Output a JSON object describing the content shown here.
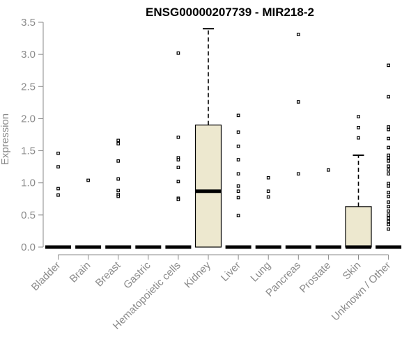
{
  "chart_data": {
    "type": "box",
    "title": "ENSG00000207739 - MIR218-2",
    "xlabel": "",
    "ylabel": "Expression",
    "ylim": [
      0,
      3.5
    ],
    "yticks": [
      0.0,
      0.5,
      1.0,
      1.5,
      2.0,
      2.5,
      3.0,
      3.5
    ],
    "ytick_labels": [
      "0.0",
      "0.5",
      "1.0",
      "1.5",
      "2.0",
      "2.5",
      "3.0",
      "3.5"
    ],
    "grid": false,
    "box_fill": "#ede8cf",
    "categories": [
      "Bladder",
      "Brain",
      "Breast",
      "Gastric",
      "Hematopoietic cells",
      "Kidney",
      "Liver",
      "Lung",
      "Pancreas",
      "Prostate",
      "Skin",
      "Unknown / Other"
    ],
    "boxes": [
      {
        "category": "Bladder",
        "q1": 0,
        "median": 0,
        "q3": 0,
        "whisker_low": 0,
        "whisker_high": 0,
        "outliers": [
          1.46,
          1.25,
          0.91,
          0.81
        ]
      },
      {
        "category": "Brain",
        "q1": 0,
        "median": 0,
        "q3": 0,
        "whisker_low": 0,
        "whisker_high": 0,
        "outliers": [
          1.04
        ]
      },
      {
        "category": "Breast",
        "q1": 0,
        "median": 0,
        "q3": 0,
        "whisker_low": 0,
        "whisker_high": 0,
        "outliers": [
          1.66,
          1.61,
          1.34,
          1.06,
          0.88,
          0.82,
          0.79
        ]
      },
      {
        "category": "Gastric",
        "q1": 0,
        "median": 0,
        "q3": 0,
        "whisker_low": 0,
        "whisker_high": 0,
        "outliers": []
      },
      {
        "category": "Hematopoietic cells",
        "q1": 0,
        "median": 0,
        "q3": 0,
        "whisker_low": 0,
        "whisker_high": 0,
        "outliers": [
          3.02,
          1.71,
          1.39,
          1.36,
          1.24,
          1.02,
          0.76,
          0.74
        ]
      },
      {
        "category": "Kidney",
        "q1": 0,
        "median": 0.87,
        "q3": 1.9,
        "whisker_low": 0,
        "whisker_high": 3.4,
        "outliers": []
      },
      {
        "category": "Liver",
        "q1": 0,
        "median": 0,
        "q3": 0,
        "whisker_low": 0,
        "whisker_high": 0,
        "outliers": [
          2.05,
          1.79,
          1.57,
          1.36,
          1.14,
          0.95,
          0.87,
          0.77,
          0.49
        ]
      },
      {
        "category": "Lung",
        "q1": 0,
        "median": 0,
        "q3": 0,
        "whisker_low": 0,
        "whisker_high": 0,
        "outliers": [
          1.08,
          0.87,
          0.78
        ]
      },
      {
        "category": "Pancreas",
        "q1": 0,
        "median": 0,
        "q3": 0,
        "whisker_low": 0,
        "whisker_high": 0,
        "outliers": [
          3.31,
          2.26,
          1.14
        ]
      },
      {
        "category": "Prostate",
        "q1": 0,
        "median": 0,
        "q3": 0,
        "whisker_low": 0,
        "whisker_high": 0,
        "outliers": [
          1.2
        ]
      },
      {
        "category": "Skin",
        "q1": 0,
        "median": 0,
        "q3": 0.63,
        "whisker_low": 0,
        "whisker_high": 1.43,
        "outliers": [
          2.03,
          1.86,
          1.7
        ]
      },
      {
        "category": "Unknown / Other",
        "q1": 0,
        "median": 0,
        "q3": 0,
        "whisker_low": 0,
        "whisker_high": 0,
        "outliers": [
          2.83,
          2.34,
          1.87,
          1.83,
          1.69,
          1.55,
          1.43,
          1.39,
          1.34,
          1.26,
          1.2,
          1.14,
          0.99,
          0.95,
          0.85,
          0.79,
          0.7,
          0.63,
          0.56,
          0.5,
          0.45,
          0.4,
          0.35,
          0.28
        ]
      }
    ]
  }
}
